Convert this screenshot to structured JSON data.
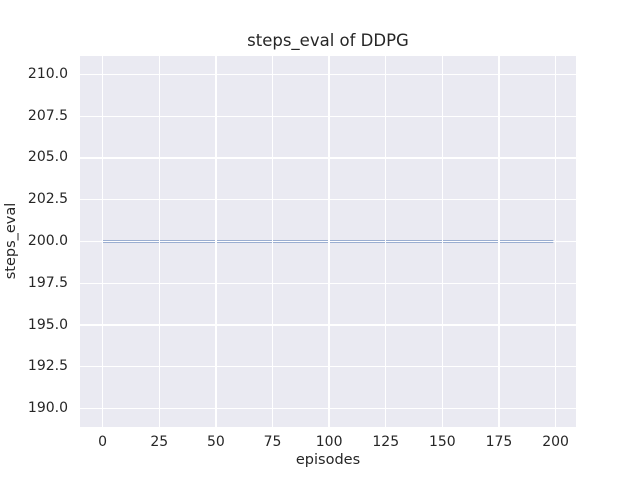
{
  "chart_data": {
    "type": "line",
    "title": "steps_eval of DDPG",
    "xlabel": "episodes",
    "ylabel": "steps_eval",
    "xlim": [
      -10,
      209
    ],
    "ylim": [
      188.9,
      211.1
    ],
    "x_ticks": [
      0,
      25,
      50,
      75,
      100,
      125,
      150,
      175,
      200
    ],
    "x_tick_labels": [
      "0",
      "25",
      "50",
      "75",
      "100",
      "125",
      "150",
      "175",
      "200"
    ],
    "y_ticks": [
      190.0,
      192.5,
      195.0,
      197.5,
      200.0,
      202.5,
      205.0,
      207.5,
      210.0
    ],
    "y_tick_labels": [
      "190.0",
      "192.5",
      "195.0",
      "197.5",
      "200.0",
      "202.5",
      "205.0",
      "207.5",
      "210.0"
    ],
    "grid": true,
    "legend": "none",
    "series": [
      {
        "name": "steps_eval",
        "x": [
          0,
          199
        ],
        "y": [
          200,
          200
        ],
        "constant_value": 200,
        "color": "#4c72b0",
        "linewidth": 2
      }
    ],
    "style": {
      "figure_bg": "#ffffff",
      "plot_bg": "#eaeaf2",
      "grid_color": "#ffffff",
      "text_color": "#262626"
    }
  }
}
